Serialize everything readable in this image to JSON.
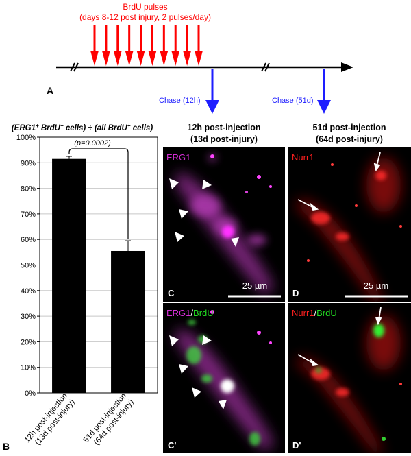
{
  "timeline": {
    "pulse_title": "BrdU pulses",
    "pulse_subtitle": "(days 8-12 post injury, 2 pulses/day)",
    "pulse_count": 10,
    "panel_label": "A",
    "chase_labels": [
      "Chase (12h)",
      "Chase (51d)"
    ],
    "colors": {
      "pulse": "#ff0000",
      "chase": "#1e1eff",
      "axis": "#000000"
    }
  },
  "chart_data": {
    "type": "bar",
    "title_parts": [
      "(ERG1",
      "+",
      " BrdU",
      "+",
      " cells) ÷ (all BrdU",
      "+",
      " cells)"
    ],
    "categories": [
      "12h post-injection (13d post-injury)",
      "51d post-injection (64d post-injury)"
    ],
    "category_lines": [
      [
        "12h post-injection",
        "(13d post-injury)"
      ],
      [
        "51d post-injection",
        "(64d post-injury)"
      ]
    ],
    "values": [
      91.5,
      55.5
    ],
    "errors": [
      1.0,
      4.0
    ],
    "ylim": [
      0,
      100
    ],
    "yticks": [
      "0%",
      "10%",
      "20%",
      "30%",
      "40%",
      "50%",
      "60%",
      "70%",
      "80%",
      "90%",
      "100%"
    ],
    "grid": true,
    "significance": "(p=0.0002)",
    "panel_label": "B",
    "bar_color": "#000000"
  },
  "micrographs": {
    "col_titles": [
      [
        "12h post-injection",
        "(13d post-injury)"
      ],
      [
        "51d post-injection",
        "(64d post-injury)"
      ]
    ],
    "panels": {
      "C": {
        "letter": "C",
        "stain": [
          {
            "t": "ERG1",
            "c": "#d22ed2"
          }
        ]
      },
      "D": {
        "letter": "D",
        "stain": [
          {
            "t": "Nurr1",
            "c": "#ff2020"
          }
        ]
      },
      "C2": {
        "letter": "C'",
        "stain": [
          {
            "t": "ERG1",
            "c": "#d22ed2"
          },
          {
            "t": "/",
            "c": "#ffffff"
          },
          {
            "t": "BrdU",
            "c": "#22dd22"
          }
        ]
      },
      "D2": {
        "letter": "D'",
        "stain": [
          {
            "t": "Nurr1",
            "c": "#ff2020"
          },
          {
            "t": "/",
            "c": "#ffffff"
          },
          {
            "t": "BrdU",
            "c": "#22dd22"
          }
        ]
      }
    },
    "scalebar": "25 µm",
    "colors": {
      "magenta": "#c030c0",
      "red": "#ff2a2a",
      "green": "#33ee33"
    }
  }
}
